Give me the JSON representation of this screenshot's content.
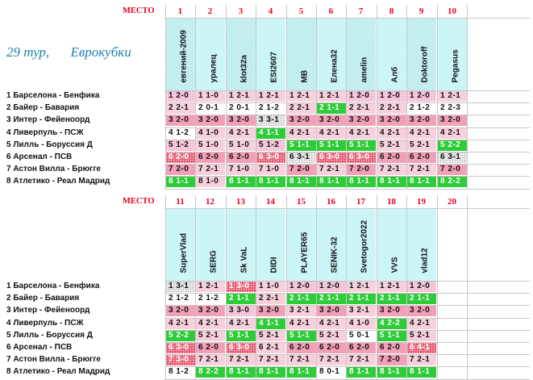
{
  "mesto_label": "МЕСТО",
  "round": {
    "tour": "29  тур,",
    "name": "Еврокубки"
  },
  "matches": [
    "1 Барселона - Бенфика",
    "2 Байер - Бавария",
    "3 Интер - Фейеноорд",
    "4 Ливерпуль - ПСЖ",
    "5 Лилль - Боруссия Д",
    "6 Арсенал - ПСВ",
    "7 Астон Вилла - Брюгге",
    "8 Атлетико - Реал Мадрид"
  ],
  "top": {
    "players": [
      {
        "num": "1",
        "name": "евгений-2009"
      },
      {
        "num": "2",
        "name": "уралец"
      },
      {
        "num": "3",
        "name": "klot32a"
      },
      {
        "num": "4",
        "name": "ESI2607"
      },
      {
        "num": "5",
        "name": "MB"
      },
      {
        "num": "6",
        "name": "Елена32"
      },
      {
        "num": "7",
        "name": "amelin"
      },
      {
        "num": "8",
        "name": "Алб"
      },
      {
        "num": "9",
        "name": "Doktoroff"
      },
      {
        "num": "10",
        "name": "Pegasus"
      }
    ],
    "rows": [
      [
        [
          "1 2-0",
          "dotpink"
        ],
        [
          "1 1-0",
          "lpink"
        ],
        [
          "1 2-1",
          "lpink"
        ],
        [
          "1 2-1",
          "lpink"
        ],
        [
          "1 2-1",
          "lpink"
        ],
        [
          "1 2-1",
          "lpink"
        ],
        [
          "1 2-0",
          "dotpink"
        ],
        [
          "1 2-0",
          "dotpink"
        ],
        [
          "1 2-0",
          "dotpink"
        ],
        [
          "1 2-1",
          "lpink"
        ]
      ],
      [
        [
          "2 2-1",
          "lpink"
        ],
        [
          "2 0-1",
          "white"
        ],
        [
          "2 0-1",
          "white"
        ],
        [
          "2 1-2",
          "white"
        ],
        [
          "2 2-1",
          "lpink"
        ],
        [
          "2 1-1",
          "green"
        ],
        [
          "2 2-1",
          "lpink"
        ],
        [
          "2 2-1",
          "lpink"
        ],
        [
          "2 1-2",
          "white"
        ],
        [
          "2 2-3",
          "white"
        ]
      ],
      [
        [
          "3 2-0",
          "pink"
        ],
        [
          "3 2-0",
          "pink"
        ],
        [
          "3 2-0",
          "pink"
        ],
        [
          "3 3-1",
          "dotgray"
        ],
        [
          "3 2-0",
          "pink"
        ],
        [
          "3 2-0",
          "pink"
        ],
        [
          "3 2-0",
          "pink"
        ],
        [
          "3 2-0",
          "pink"
        ],
        [
          "3 2-0",
          "pink"
        ],
        [
          "3 2-0",
          "pink"
        ]
      ],
      [
        [
          "4 1-2",
          "white"
        ],
        [
          "4 1-0",
          "lpink"
        ],
        [
          "4 2-1",
          "lpink"
        ],
        [
          "4 1-1",
          "green"
        ],
        [
          "4 2-1",
          "lpink"
        ],
        [
          "4 2-1",
          "lpink"
        ],
        [
          "4 2-1",
          "lpink"
        ],
        [
          "4 2-1",
          "lpink"
        ],
        [
          "4 2-1",
          "lpink"
        ],
        [
          "4 2-1",
          "lpink"
        ]
      ],
      [
        [
          "5 1-2",
          "dotpink"
        ],
        [
          "5 1-0",
          "lpink"
        ],
        [
          "5 1-0",
          "lpink"
        ],
        [
          "5 1-2",
          "dotpink"
        ],
        [
          "5 1-1",
          "green"
        ],
        [
          "5 1-1",
          "green"
        ],
        [
          "5 1-1",
          "green"
        ],
        [
          "5 2-1",
          "lpink"
        ],
        [
          "5 2-1",
          "lpink"
        ],
        [
          "5 2-2",
          "green"
        ]
      ],
      [
        [
          "6 2-0",
          "dotred"
        ],
        [
          "6 2-0",
          "pink"
        ],
        [
          "6 2-0",
          "pink"
        ],
        [
          "6 3-0",
          "dotred"
        ],
        [
          "6 3-1",
          "dotgray"
        ],
        [
          "6 3-0",
          "dotred"
        ],
        [
          "6 3-0",
          "dotred"
        ],
        [
          "6 2-0",
          "pink"
        ],
        [
          "6 2-0",
          "pink"
        ],
        [
          "6 3-1",
          "dotgray"
        ]
      ],
      [
        [
          "7 2-0",
          "pink"
        ],
        [
          "7 2-1",
          "lpink"
        ],
        [
          "7 1-0",
          "lpink"
        ],
        [
          "7 1-0",
          "lpink"
        ],
        [
          "7 2-0",
          "pink"
        ],
        [
          "7 2-1",
          "lpink"
        ],
        [
          "7 2-0",
          "pink"
        ],
        [
          "7 2-1",
          "lpink"
        ],
        [
          "7 2-1",
          "lpink"
        ],
        [
          "7 2-0",
          "pink"
        ]
      ],
      [
        [
          "8 1-1",
          "green"
        ],
        [
          "8 1-0",
          "lpink"
        ],
        [
          "8 1-1",
          "green"
        ],
        [
          "8 1-1",
          "green"
        ],
        [
          "8 1-1",
          "green"
        ],
        [
          "8 1-1",
          "green"
        ],
        [
          "8 1-1",
          "green"
        ],
        [
          "8 1-1",
          "green"
        ],
        [
          "8 1-1",
          "green"
        ],
        [
          "8 2-2",
          "green"
        ]
      ]
    ]
  },
  "bottom": {
    "players": [
      {
        "num": "11",
        "name": "SuperVlad"
      },
      {
        "num": "12",
        "name": "SERG"
      },
      {
        "num": "13",
        "name": "Sk VaL"
      },
      {
        "num": "14",
        "name": "DIDI"
      },
      {
        "num": "15",
        "name": "PLAYER65"
      },
      {
        "num": "16",
        "name": "SENIK-32"
      },
      {
        "num": "17",
        "name": "Svetogor2022"
      },
      {
        "num": "18",
        "name": "VVS"
      },
      {
        "num": "19",
        "name": "vlad12"
      },
      {
        "num": "20",
        "name": ""
      }
    ],
    "rows": [
      [
        [
          "1 3-1",
          "dotgray"
        ],
        [
          "1 2-1",
          "lpink"
        ],
        [
          "1 3-0",
          "dotred"
        ],
        [
          "1 1-0",
          "lpink"
        ],
        [
          "1 2-0",
          "dotpink"
        ],
        [
          "1 2-0",
          "dotpink"
        ],
        [
          "1 2-1",
          "lpink"
        ],
        [
          "1 2-1",
          "lpink"
        ],
        [
          "1 2-0",
          "dotpink"
        ],
        [
          "",
          "empty"
        ]
      ],
      [
        [
          "2 1-2",
          "white"
        ],
        [
          "2 1-2",
          "white"
        ],
        [
          "2 1-1",
          "green"
        ],
        [
          "2 2-1",
          "lpink"
        ],
        [
          "2 1-1",
          "green"
        ],
        [
          "2 1-1",
          "green"
        ],
        [
          "2 1-1",
          "green"
        ],
        [
          "2 1-1",
          "green"
        ],
        [
          "2 1-1",
          "green"
        ],
        [
          "",
          "empty"
        ]
      ],
      [
        [
          "3 2-0",
          "pink"
        ],
        [
          "3 2-0",
          "pink"
        ],
        [
          "3 3-0",
          "dotpink"
        ],
        [
          "3 2-0",
          "pink"
        ],
        [
          "3 2-1",
          "lpink"
        ],
        [
          "3 2-0",
          "pink"
        ],
        [
          "3 2-1",
          "lpink"
        ],
        [
          "3 2-0",
          "pink"
        ],
        [
          "3 2-0",
          "pink"
        ],
        [
          "",
          "empty"
        ]
      ],
      [
        [
          "4 2-1",
          "lpink"
        ],
        [
          "4 2-1",
          "lpink"
        ],
        [
          "4 2-1",
          "lpink"
        ],
        [
          "4 1-1",
          "green"
        ],
        [
          "4 2-1",
          "lpink"
        ],
        [
          "4 2-1",
          "lpink"
        ],
        [
          "4 1-0",
          "lpink"
        ],
        [
          "4 2-2",
          "green"
        ],
        [
          "4 2-1",
          "lpink"
        ],
        [
          "",
          "empty"
        ]
      ],
      [
        [
          "5 2-2",
          "green"
        ],
        [
          "5 2-1",
          "lpink"
        ],
        [
          "5 1-1",
          "green"
        ],
        [
          "5 2-1",
          "lpink"
        ],
        [
          "5 1-1",
          "green"
        ],
        [
          "5 2-1",
          "lpink"
        ],
        [
          "5 0-1",
          "white"
        ],
        [
          "5 1-1",
          "green"
        ],
        [
          "5 2-1",
          "lpink"
        ],
        [
          "",
          "empty"
        ]
      ],
      [
        [
          "6 3-0",
          "dotred"
        ],
        [
          "6 2-0",
          "pink"
        ],
        [
          "6 3-0",
          "dotred"
        ],
        [
          "6 2-1",
          "lpink"
        ],
        [
          "6 2-0",
          "pink"
        ],
        [
          "6 2-0",
          "pink"
        ],
        [
          "6 2-0",
          "pink"
        ],
        [
          "6 2-0",
          "pink"
        ],
        [
          "6 4-1",
          "dotred"
        ],
        [
          "",
          "empty"
        ]
      ],
      [
        [
          "7 3-0",
          "dotred"
        ],
        [
          "7 2-1",
          "lpink"
        ],
        [
          "7 2-1",
          "lpink"
        ],
        [
          "7 2-1",
          "lpink"
        ],
        [
          "7 2-1",
          "lpink"
        ],
        [
          "7 2-1",
          "lpink"
        ],
        [
          "7 2-1",
          "lpink"
        ],
        [
          "7 2-0",
          "pink"
        ],
        [
          "7 2-1",
          "lpink"
        ],
        [
          "",
          "empty"
        ]
      ],
      [
        [
          "8 1-2",
          "white"
        ],
        [
          "8 2-2",
          "green"
        ],
        [
          "8 1-1",
          "green"
        ],
        [
          "8 1-1",
          "green"
        ],
        [
          "8 1-1",
          "green"
        ],
        [
          "8 0-1",
          "white"
        ],
        [
          "8 1-1",
          "green"
        ],
        [
          "8 1-1",
          "green"
        ],
        [
          "8 1-1",
          "green"
        ],
        [
          "",
          "empty"
        ]
      ]
    ]
  },
  "colors": {
    "accent_red": "#e8001c",
    "title_blue": "#1f7fae",
    "name_bg": "#ccf5f5",
    "exact_green": "#2fcc3a",
    "outcome_pink": "#f2a0b8",
    "light_pink": "#f8d0dc"
  }
}
